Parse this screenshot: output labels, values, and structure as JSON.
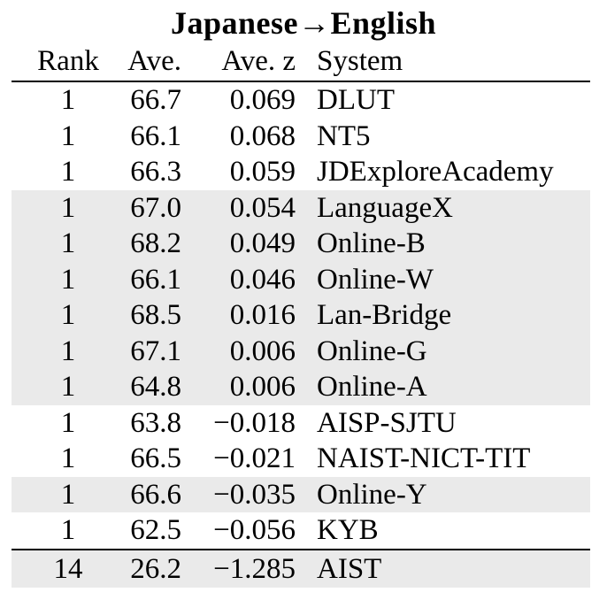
{
  "title": "Japanese→English",
  "columns": {
    "rank": "Rank",
    "ave": "Ave.",
    "ave_z": "Ave. z",
    "system": "System"
  },
  "table": {
    "rows": [
      {
        "rank": "1",
        "ave": "66.7",
        "ave_z": "0.069",
        "system": "DLUT",
        "shaded": false
      },
      {
        "rank": "1",
        "ave": "66.1",
        "ave_z": "0.068",
        "system": "NT5",
        "shaded": false
      },
      {
        "rank": "1",
        "ave": "66.3",
        "ave_z": "0.059",
        "system": "JDExploreAcademy",
        "shaded": false
      },
      {
        "rank": "1",
        "ave": "67.0",
        "ave_z": "0.054",
        "system": "LanguageX",
        "shaded": true
      },
      {
        "rank": "1",
        "ave": "68.2",
        "ave_z": "0.049",
        "system": "Online-B",
        "shaded": true
      },
      {
        "rank": "1",
        "ave": "66.1",
        "ave_z": "0.046",
        "system": "Online-W",
        "shaded": true
      },
      {
        "rank": "1",
        "ave": "68.5",
        "ave_z": "0.016",
        "system": "Lan-Bridge",
        "shaded": true
      },
      {
        "rank": "1",
        "ave": "67.1",
        "ave_z": "0.006",
        "system": "Online-G",
        "shaded": true
      },
      {
        "rank": "1",
        "ave": "64.8",
        "ave_z": "0.006",
        "system": "Online-A",
        "shaded": true
      },
      {
        "rank": "1",
        "ave": "63.8",
        "ave_z": "−0.018",
        "system": "AISP-SJTU",
        "shaded": false
      },
      {
        "rank": "1",
        "ave": "66.5",
        "ave_z": "−0.021",
        "system": "NAIST-NICT-TIT",
        "shaded": false
      },
      {
        "rank": "1",
        "ave": "66.6",
        "ave_z": "−0.035",
        "system": "Online-Y",
        "shaded": true
      },
      {
        "rank": "1",
        "ave": "62.5",
        "ave_z": "−0.056",
        "system": "KYB",
        "shaded": false
      }
    ],
    "footer_row": {
      "rank": "14",
      "ave": "26.2",
      "ave_z": "−1.285",
      "system": "AIST",
      "shaded": true
    }
  },
  "colors": {
    "row_shade": "#eaeaea",
    "rule": "#000000",
    "text": "#000000",
    "background": "#ffffff"
  }
}
